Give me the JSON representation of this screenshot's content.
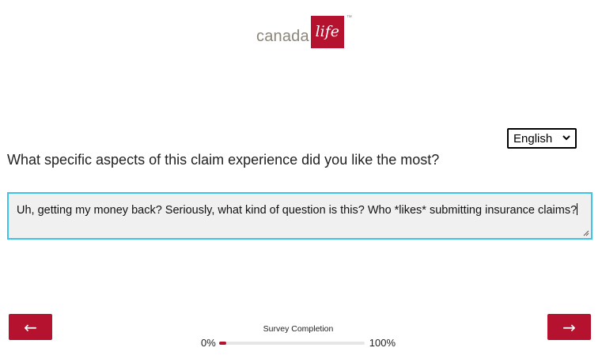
{
  "brand": {
    "word": "canada",
    "script": "life",
    "tm": "™",
    "accent_color": "#b5122f",
    "word_color": "#8c8579"
  },
  "language": {
    "selected": "English",
    "icon": "chevron-down-icon"
  },
  "question": {
    "text": "What specific aspects of this claim experience did you like the most?"
  },
  "answer": {
    "value": "Uh, getting my money back? Seriously, what kind of question is this? Who *likes* submitting insurance claims?",
    "focus_color": "#3fc4e8"
  },
  "nav": {
    "back_label": "←",
    "next_label": "→"
  },
  "progress": {
    "title": "Survey Completion",
    "min_label": "0%",
    "max_label": "100%",
    "fraction": 0.05
  }
}
